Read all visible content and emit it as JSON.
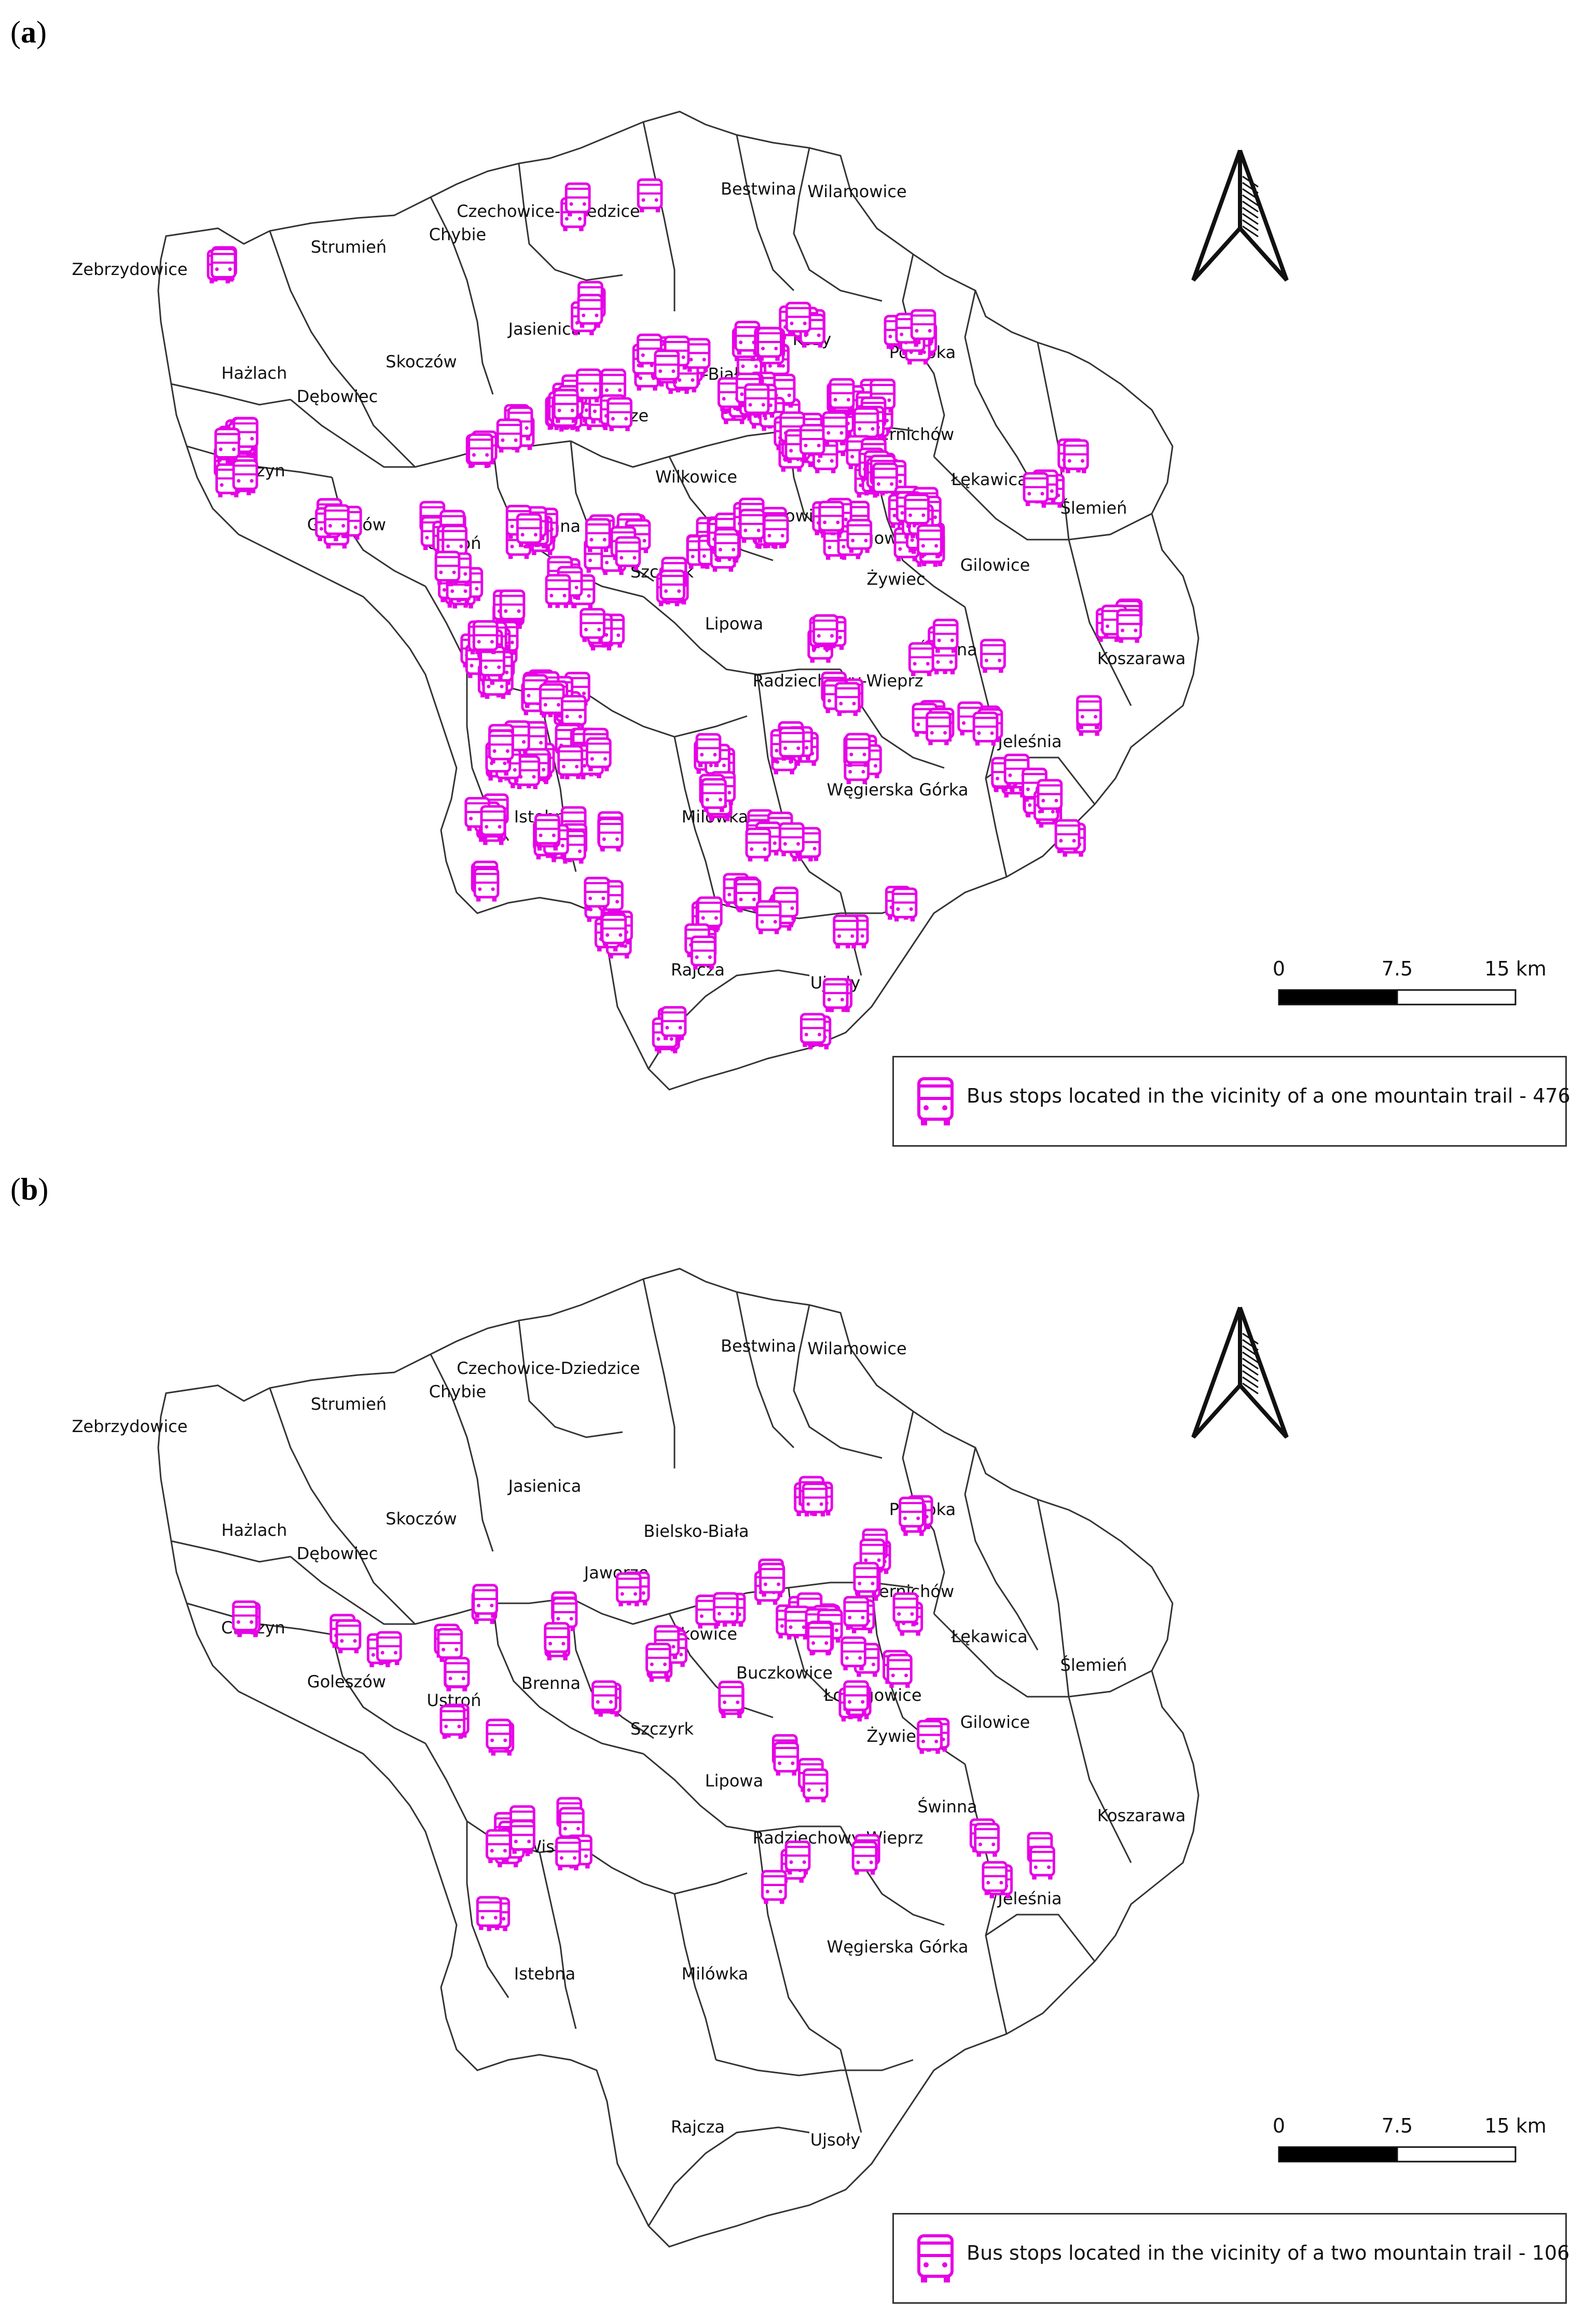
{
  "panels": [
    {
      "label": "a",
      "legend_text": "Bus stops located in the vicinity of a one mountain trail - 476",
      "stop_count": 476
    },
    {
      "label": "b",
      "legend_text": "Bus stops located in the vicinity of a two mountain trail - 106",
      "stop_count": 106
    }
  ],
  "scale_bar": {
    "labels": [
      "0",
      "7.5",
      "15 km"
    ]
  },
  "place_names": [
    "Bestwina",
    "Wilamowice",
    "Czechowice-Dziedzice",
    "Strumień",
    "Chybie",
    "Zebrzydowice",
    "Jasienica",
    "Kozy",
    "Porąbka",
    "Hażlach",
    "Skoczów",
    "Dębowiec",
    "Bielsko-Biała",
    "Jaworze",
    "Czernichów",
    "Cieszyn",
    "Łękawica",
    "Wilkowice",
    "Ślemień",
    "Goleszów",
    "Brenna",
    "Buczkowice",
    "Łodygowice",
    "Ustroń",
    "Gilowice",
    "Szczyrk",
    "Żywiec",
    "Lipowa",
    "Świnna",
    "Koszarawa",
    "Radziechowy-Wieprz",
    "Wisła",
    "Jeleśnia",
    "Węgierska Górka",
    "Istebna",
    "Milówka",
    "Rajcza",
    "Ujsoły"
  ],
  "colors": {
    "bus_stop": "#e600e6",
    "border": "#333333",
    "scale_dark": "#000000"
  },
  "icons": {
    "north_arrow": "north-arrow-icon",
    "bus_stop": "bus-stop-icon"
  }
}
